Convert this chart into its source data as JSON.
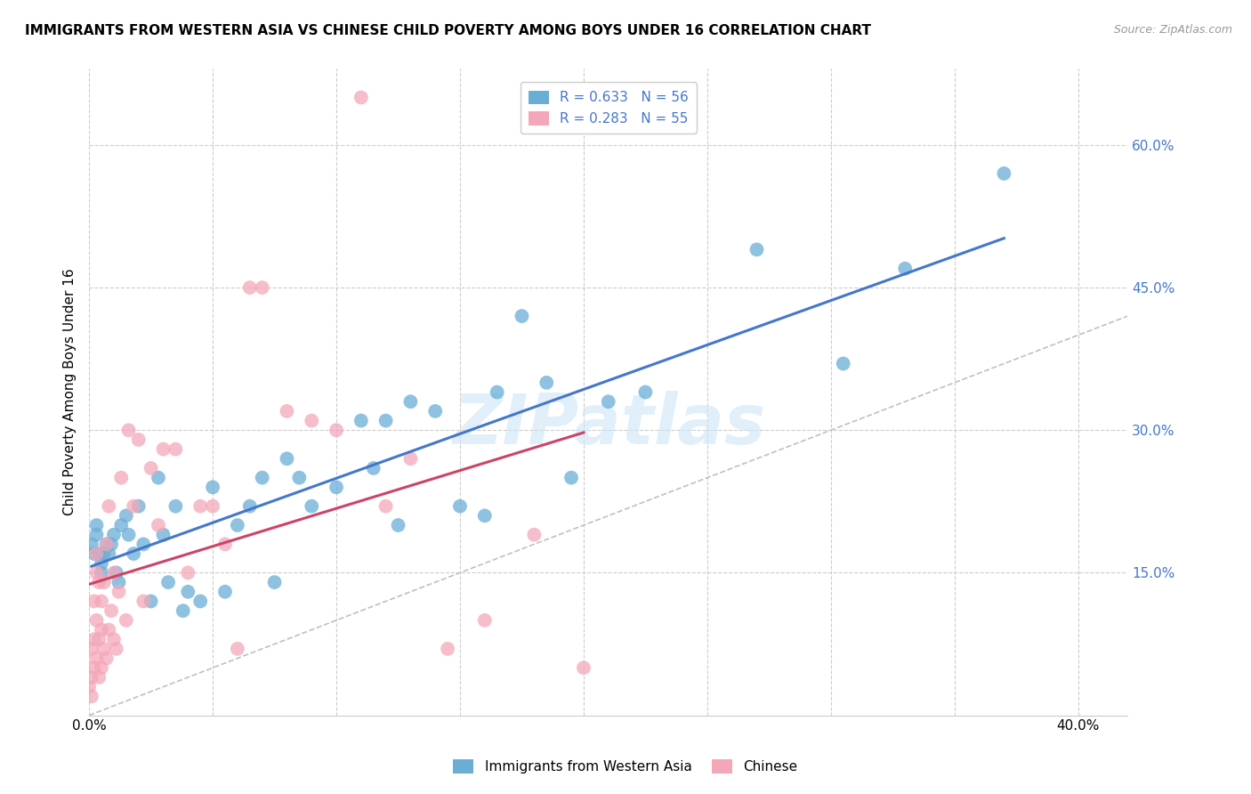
{
  "title": "IMMIGRANTS FROM WESTERN ASIA VS CHINESE CHILD POVERTY AMONG BOYS UNDER 16 CORRELATION CHART",
  "source": "Source: ZipAtlas.com",
  "xlabel_ticks": [
    0.0,
    0.05,
    0.1,
    0.15,
    0.2,
    0.25,
    0.3,
    0.35,
    0.4
  ],
  "xlabel_labels": [
    "0.0%",
    "",
    "",
    "",
    "",
    "",
    "",
    "",
    "40.0%"
  ],
  "ylabel_ticks": [
    0.15,
    0.3,
    0.45,
    0.6
  ],
  "ylabel_labels": [
    "15.0%",
    "30.0%",
    "45.0%",
    "60.0%"
  ],
  "xlim": [
    0.0,
    0.42
  ],
  "ylim": [
    0.0,
    0.68
  ],
  "ylabel": "Child Poverty Among Boys Under 16",
  "legend_labels": [
    "Immigrants from Western Asia",
    "Chinese"
  ],
  "r_western": 0.633,
  "n_western": 56,
  "r_chinese": 0.283,
  "n_chinese": 55,
  "blue_color": "#6aaed6",
  "pink_color": "#f4a7b9",
  "blue_line_color": "#4477cc",
  "pink_line_color": "#cc4466",
  "western_asia_x": [
    0.001,
    0.002,
    0.003,
    0.003,
    0.004,
    0.005,
    0.005,
    0.006,
    0.007,
    0.008,
    0.009,
    0.01,
    0.011,
    0.012,
    0.013,
    0.015,
    0.016,
    0.018,
    0.02,
    0.022,
    0.025,
    0.028,
    0.03,
    0.032,
    0.035,
    0.038,
    0.04,
    0.045,
    0.05,
    0.055,
    0.06,
    0.065,
    0.07,
    0.075,
    0.08,
    0.085,
    0.09,
    0.1,
    0.11,
    0.115,
    0.12,
    0.125,
    0.13,
    0.14,
    0.15,
    0.16,
    0.165,
    0.175,
    0.185,
    0.195,
    0.21,
    0.225,
    0.27,
    0.305,
    0.33,
    0.37
  ],
  "western_asia_y": [
    0.18,
    0.17,
    0.19,
    0.2,
    0.17,
    0.15,
    0.16,
    0.17,
    0.18,
    0.17,
    0.18,
    0.19,
    0.15,
    0.14,
    0.2,
    0.21,
    0.19,
    0.17,
    0.22,
    0.18,
    0.12,
    0.25,
    0.19,
    0.14,
    0.22,
    0.11,
    0.13,
    0.12,
    0.24,
    0.13,
    0.2,
    0.22,
    0.25,
    0.14,
    0.27,
    0.25,
    0.22,
    0.24,
    0.31,
    0.26,
    0.31,
    0.2,
    0.33,
    0.32,
    0.22,
    0.21,
    0.34,
    0.42,
    0.35,
    0.25,
    0.33,
    0.34,
    0.49,
    0.37,
    0.47,
    0.57
  ],
  "chinese_x": [
    0.0,
    0.001,
    0.001,
    0.001,
    0.002,
    0.002,
    0.002,
    0.003,
    0.003,
    0.003,
    0.003,
    0.004,
    0.004,
    0.004,
    0.005,
    0.005,
    0.005,
    0.006,
    0.006,
    0.007,
    0.007,
    0.008,
    0.008,
    0.009,
    0.01,
    0.01,
    0.011,
    0.012,
    0.013,
    0.015,
    0.016,
    0.018,
    0.02,
    0.022,
    0.025,
    0.028,
    0.03,
    0.035,
    0.04,
    0.045,
    0.05,
    0.055,
    0.06,
    0.065,
    0.07,
    0.08,
    0.09,
    0.1,
    0.11,
    0.12,
    0.13,
    0.145,
    0.16,
    0.18,
    0.2
  ],
  "chinese_y": [
    0.03,
    0.02,
    0.04,
    0.07,
    0.05,
    0.08,
    0.12,
    0.06,
    0.1,
    0.15,
    0.17,
    0.04,
    0.08,
    0.14,
    0.05,
    0.09,
    0.12,
    0.07,
    0.14,
    0.06,
    0.18,
    0.09,
    0.22,
    0.11,
    0.08,
    0.15,
    0.07,
    0.13,
    0.25,
    0.1,
    0.3,
    0.22,
    0.29,
    0.12,
    0.26,
    0.2,
    0.28,
    0.28,
    0.15,
    0.22,
    0.22,
    0.18,
    0.07,
    0.45,
    0.45,
    0.32,
    0.31,
    0.3,
    0.65,
    0.22,
    0.27,
    0.07,
    0.1,
    0.19,
    0.05
  ]
}
